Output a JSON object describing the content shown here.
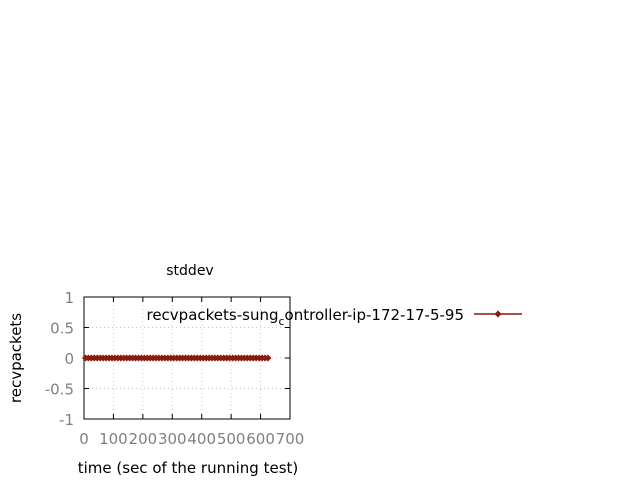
{
  "chart_data": {
    "type": "line",
    "title": "stddev",
    "xlabel": "time (sec of the running test)",
    "ylabel": "recvpackets",
    "xlim": [
      0,
      700
    ],
    "ylim": [
      -1,
      1
    ],
    "xticks": [
      0,
      100,
      200,
      300,
      400,
      500,
      600,
      700
    ],
    "yticks": [
      1,
      0.5,
      0,
      -0.5,
      -1
    ],
    "xtick_labels": [
      "0",
      "100",
      "200",
      "300",
      "400",
      "500",
      "600",
      "700"
    ],
    "ytick_labels": [
      "1",
      "0.5",
      "0",
      "-0.5",
      "-1"
    ],
    "grid": true,
    "legend_position": "right",
    "series": [
      {
        "name_parts": {
          "before": "recvpackets-sung",
          "subscript": "c",
          "after": "ontroller-ip-172-17-5-95"
        },
        "color": "#8b1a0e",
        "x": [
          5,
          15,
          25,
          35,
          45,
          55,
          65,
          75,
          85,
          95,
          105,
          115,
          125,
          135,
          145,
          155,
          165,
          175,
          185,
          195,
          205,
          215,
          225,
          235,
          245,
          255,
          265,
          275,
          285,
          295,
          305,
          315,
          325,
          335,
          345,
          355,
          365,
          375,
          385,
          395,
          405,
          415,
          425,
          435,
          445,
          455,
          465,
          475,
          485,
          495,
          505,
          515,
          525,
          535,
          545,
          555,
          565,
          575,
          585,
          595,
          605,
          615,
          625
        ],
        "y": [
          0,
          0,
          0,
          0,
          0,
          0,
          0,
          0,
          0,
          0,
          0,
          0,
          0,
          0,
          0,
          0,
          0,
          0,
          0,
          0,
          0,
          0,
          0,
          0,
          0,
          0,
          0,
          0,
          0,
          0,
          0,
          0,
          0,
          0,
          0,
          0,
          0,
          0,
          0,
          0,
          0,
          0,
          0,
          0,
          0,
          0,
          0,
          0,
          0,
          0,
          0,
          0,
          0,
          0,
          0,
          0,
          0,
          0,
          0,
          0,
          0,
          0,
          0
        ]
      }
    ]
  }
}
